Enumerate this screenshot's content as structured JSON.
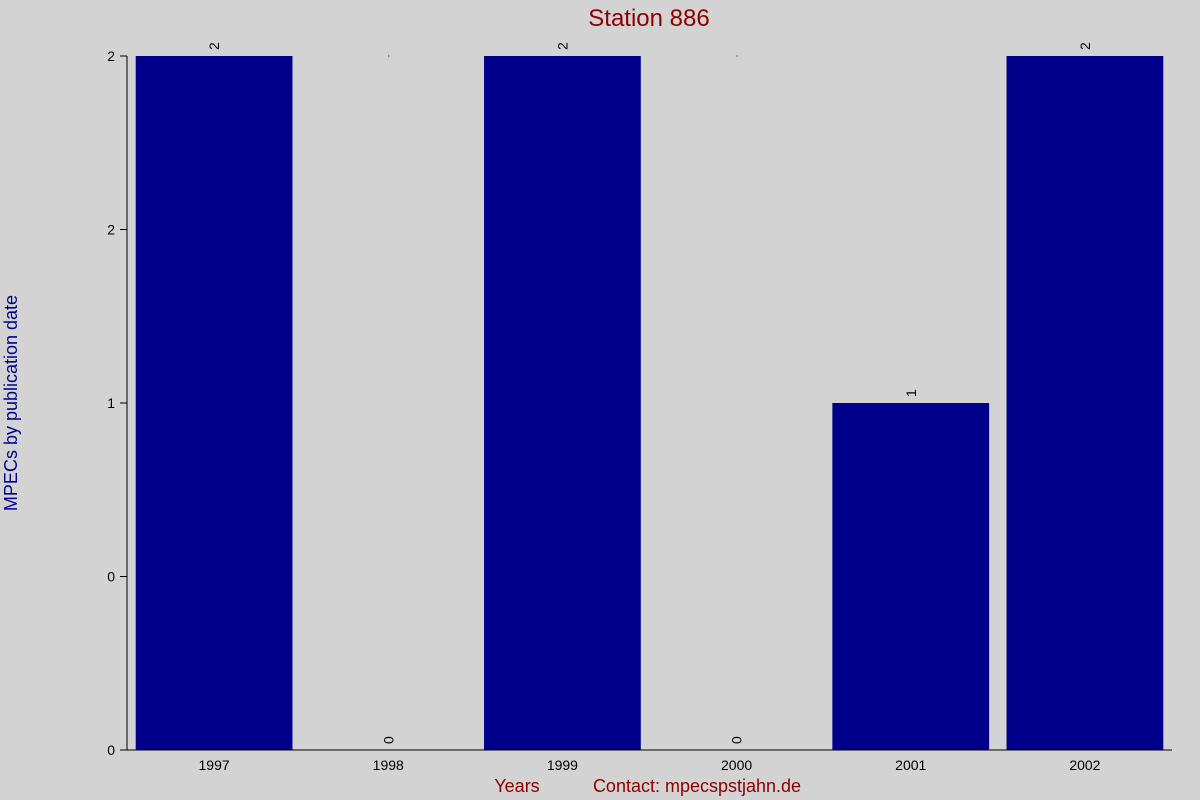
{
  "colors": {
    "background": "#d3d3d3",
    "bar": "#00008b",
    "title": "#8b0000",
    "ylabel": "#00008b",
    "xlabel": "#8b0000",
    "axis": "#000000"
  },
  "chart_data": {
    "type": "bar",
    "title": "Station 886",
    "xlabel": "Years",
    "credit": "Contact: mpecspstjahn.de",
    "ylabel": "MPECs by publication date",
    "categories": [
      "1997",
      "1998",
      "1999",
      "2000",
      "2001",
      "2002"
    ],
    "values": [
      2,
      0,
      2,
      0,
      1,
      2
    ],
    "value_labels": [
      "2",
      "0",
      "2",
      "0",
      "1",
      "2"
    ],
    "ylim": [
      0,
      2
    ],
    "ytick_values": [
      0,
      0.5,
      1,
      1.5,
      2
    ],
    "ytick_labels": [
      "0",
      "0",
      "1",
      "2",
      "2"
    ],
    "grid": false,
    "legend": "none"
  }
}
